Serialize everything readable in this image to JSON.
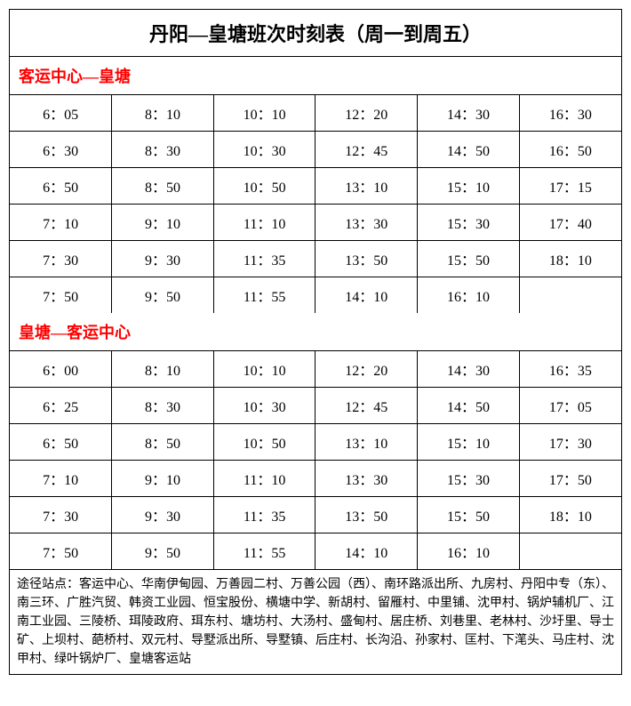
{
  "title": "丹阳—皇塘班次时刻表（周一到周五）",
  "section1": {
    "header": "客运中心—皇塘",
    "rows": [
      [
        "6：05",
        "8：10",
        "10：10",
        "12：20",
        "14：30",
        "16：30"
      ],
      [
        "6：30",
        "8：30",
        "10：30",
        "12：45",
        "14：50",
        "16：50"
      ],
      [
        "6：50",
        "8：50",
        "10：50",
        "13：10",
        "15：10",
        "17：15"
      ],
      [
        "7：10",
        "9：10",
        "11：10",
        "13：30",
        "15：30",
        "17：40"
      ],
      [
        "7：30",
        "9：30",
        "11：35",
        "13：50",
        "15：50",
        "18：10"
      ],
      [
        "7：50",
        "9：50",
        "11：55",
        "14：10",
        "16：10",
        ""
      ]
    ]
  },
  "section2": {
    "header": "皇塘—客运中心",
    "rows": [
      [
        "6：00",
        "8：10",
        "10：10",
        "12：20",
        "14：30",
        "16：35"
      ],
      [
        "6：25",
        "8：30",
        "10：30",
        "12：45",
        "14：50",
        "17：05"
      ],
      [
        "6：50",
        "8：50",
        "10：50",
        "13：10",
        "15：10",
        "17：30"
      ],
      [
        "7：10",
        "9：10",
        "11：10",
        "13：30",
        "15：30",
        "17：50"
      ],
      [
        "7：30",
        "9：30",
        "11：35",
        "13：50",
        "15：50",
        "18：10"
      ],
      [
        "7：50",
        "9：50",
        "11：55",
        "14：10",
        "16：10",
        ""
      ]
    ]
  },
  "footer": "途径站点：客运中心、华南伊甸园、万善园二村、万善公园（西）、南环路派出所、九房村、丹阳中专（东）、南三环、广胜汽贸、韩资工业园、恒宝股份、横塘中学、新胡村、留雁村、中里铺、沈甲村、锅炉辅机厂、江南工业园、三陵桥、珥陵政府、珥东村、塘坊村、大汤村、盛甸村、居庄桥、刘巷里、老林村、沙圩里、导士矿、上坝村、葩桥村、双元村、导墅派出所、导墅镇、后庄村、长沟沿、孙家村、匡村、下滗头、马庄村、沈甲村、绿叶锅炉厂、皇塘客运站",
  "colors": {
    "border": "#000000",
    "section_header": "#ff0000",
    "text": "#000000",
    "background": "#ffffff"
  },
  "table_config": {
    "columns": 6,
    "cell_fontsize": 16,
    "title_fontsize": 22,
    "section_fontsize": 18,
    "footer_fontsize": 14
  }
}
